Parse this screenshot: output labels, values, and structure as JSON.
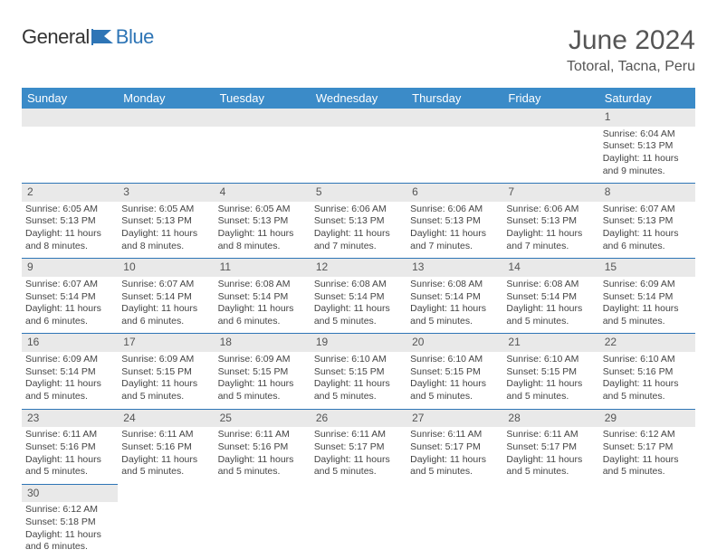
{
  "brand": {
    "word1": "General",
    "word2": "Blue",
    "logo_color": "#2e75b6"
  },
  "title": "June 2024",
  "location": "Totoral, Tacna, Peru",
  "header_bg": "#3b8bc8",
  "daynum_bg": "#e9e9e9",
  "border_color": "#2e75b6",
  "weekdays": [
    "Sunday",
    "Monday",
    "Tuesday",
    "Wednesday",
    "Thursday",
    "Friday",
    "Saturday"
  ],
  "weeks": [
    {
      "days": [
        null,
        null,
        null,
        null,
        null,
        null,
        {
          "n": "1",
          "sunrise": "Sunrise: 6:04 AM",
          "sunset": "Sunset: 5:13 PM",
          "daylight1": "Daylight: 11 hours",
          "daylight2": "and 9 minutes."
        }
      ]
    },
    {
      "days": [
        {
          "n": "2",
          "sunrise": "Sunrise: 6:05 AM",
          "sunset": "Sunset: 5:13 PM",
          "daylight1": "Daylight: 11 hours",
          "daylight2": "and 8 minutes."
        },
        {
          "n": "3",
          "sunrise": "Sunrise: 6:05 AM",
          "sunset": "Sunset: 5:13 PM",
          "daylight1": "Daylight: 11 hours",
          "daylight2": "and 8 minutes."
        },
        {
          "n": "4",
          "sunrise": "Sunrise: 6:05 AM",
          "sunset": "Sunset: 5:13 PM",
          "daylight1": "Daylight: 11 hours",
          "daylight2": "and 8 minutes."
        },
        {
          "n": "5",
          "sunrise": "Sunrise: 6:06 AM",
          "sunset": "Sunset: 5:13 PM",
          "daylight1": "Daylight: 11 hours",
          "daylight2": "and 7 minutes."
        },
        {
          "n": "6",
          "sunrise": "Sunrise: 6:06 AM",
          "sunset": "Sunset: 5:13 PM",
          "daylight1": "Daylight: 11 hours",
          "daylight2": "and 7 minutes."
        },
        {
          "n": "7",
          "sunrise": "Sunrise: 6:06 AM",
          "sunset": "Sunset: 5:13 PM",
          "daylight1": "Daylight: 11 hours",
          "daylight2": "and 7 minutes."
        },
        {
          "n": "8",
          "sunrise": "Sunrise: 6:07 AM",
          "sunset": "Sunset: 5:13 PM",
          "daylight1": "Daylight: 11 hours",
          "daylight2": "and 6 minutes."
        }
      ]
    },
    {
      "days": [
        {
          "n": "9",
          "sunrise": "Sunrise: 6:07 AM",
          "sunset": "Sunset: 5:14 PM",
          "daylight1": "Daylight: 11 hours",
          "daylight2": "and 6 minutes."
        },
        {
          "n": "10",
          "sunrise": "Sunrise: 6:07 AM",
          "sunset": "Sunset: 5:14 PM",
          "daylight1": "Daylight: 11 hours",
          "daylight2": "and 6 minutes."
        },
        {
          "n": "11",
          "sunrise": "Sunrise: 6:08 AM",
          "sunset": "Sunset: 5:14 PM",
          "daylight1": "Daylight: 11 hours",
          "daylight2": "and 6 minutes."
        },
        {
          "n": "12",
          "sunrise": "Sunrise: 6:08 AM",
          "sunset": "Sunset: 5:14 PM",
          "daylight1": "Daylight: 11 hours",
          "daylight2": "and 5 minutes."
        },
        {
          "n": "13",
          "sunrise": "Sunrise: 6:08 AM",
          "sunset": "Sunset: 5:14 PM",
          "daylight1": "Daylight: 11 hours",
          "daylight2": "and 5 minutes."
        },
        {
          "n": "14",
          "sunrise": "Sunrise: 6:08 AM",
          "sunset": "Sunset: 5:14 PM",
          "daylight1": "Daylight: 11 hours",
          "daylight2": "and 5 minutes."
        },
        {
          "n": "15",
          "sunrise": "Sunrise: 6:09 AM",
          "sunset": "Sunset: 5:14 PM",
          "daylight1": "Daylight: 11 hours",
          "daylight2": "and 5 minutes."
        }
      ]
    },
    {
      "days": [
        {
          "n": "16",
          "sunrise": "Sunrise: 6:09 AM",
          "sunset": "Sunset: 5:14 PM",
          "daylight1": "Daylight: 11 hours",
          "daylight2": "and 5 minutes."
        },
        {
          "n": "17",
          "sunrise": "Sunrise: 6:09 AM",
          "sunset": "Sunset: 5:15 PM",
          "daylight1": "Daylight: 11 hours",
          "daylight2": "and 5 minutes."
        },
        {
          "n": "18",
          "sunrise": "Sunrise: 6:09 AM",
          "sunset": "Sunset: 5:15 PM",
          "daylight1": "Daylight: 11 hours",
          "daylight2": "and 5 minutes."
        },
        {
          "n": "19",
          "sunrise": "Sunrise: 6:10 AM",
          "sunset": "Sunset: 5:15 PM",
          "daylight1": "Daylight: 11 hours",
          "daylight2": "and 5 minutes."
        },
        {
          "n": "20",
          "sunrise": "Sunrise: 6:10 AM",
          "sunset": "Sunset: 5:15 PM",
          "daylight1": "Daylight: 11 hours",
          "daylight2": "and 5 minutes."
        },
        {
          "n": "21",
          "sunrise": "Sunrise: 6:10 AM",
          "sunset": "Sunset: 5:15 PM",
          "daylight1": "Daylight: 11 hours",
          "daylight2": "and 5 minutes."
        },
        {
          "n": "22",
          "sunrise": "Sunrise: 6:10 AM",
          "sunset": "Sunset: 5:16 PM",
          "daylight1": "Daylight: 11 hours",
          "daylight2": "and 5 minutes."
        }
      ]
    },
    {
      "days": [
        {
          "n": "23",
          "sunrise": "Sunrise: 6:11 AM",
          "sunset": "Sunset: 5:16 PM",
          "daylight1": "Daylight: 11 hours",
          "daylight2": "and 5 minutes."
        },
        {
          "n": "24",
          "sunrise": "Sunrise: 6:11 AM",
          "sunset": "Sunset: 5:16 PM",
          "daylight1": "Daylight: 11 hours",
          "daylight2": "and 5 minutes."
        },
        {
          "n": "25",
          "sunrise": "Sunrise: 6:11 AM",
          "sunset": "Sunset: 5:16 PM",
          "daylight1": "Daylight: 11 hours",
          "daylight2": "and 5 minutes."
        },
        {
          "n": "26",
          "sunrise": "Sunrise: 6:11 AM",
          "sunset": "Sunset: 5:17 PM",
          "daylight1": "Daylight: 11 hours",
          "daylight2": "and 5 minutes."
        },
        {
          "n": "27",
          "sunrise": "Sunrise: 6:11 AM",
          "sunset": "Sunset: 5:17 PM",
          "daylight1": "Daylight: 11 hours",
          "daylight2": "and 5 minutes."
        },
        {
          "n": "28",
          "sunrise": "Sunrise: 6:11 AM",
          "sunset": "Sunset: 5:17 PM",
          "daylight1": "Daylight: 11 hours",
          "daylight2": "and 5 minutes."
        },
        {
          "n": "29",
          "sunrise": "Sunrise: 6:12 AM",
          "sunset": "Sunset: 5:17 PM",
          "daylight1": "Daylight: 11 hours",
          "daylight2": "and 5 minutes."
        }
      ]
    },
    {
      "days": [
        {
          "n": "30",
          "sunrise": "Sunrise: 6:12 AM",
          "sunset": "Sunset: 5:18 PM",
          "daylight1": "Daylight: 11 hours",
          "daylight2": "and 6 minutes."
        },
        null,
        null,
        null,
        null,
        null,
        null
      ]
    }
  ]
}
